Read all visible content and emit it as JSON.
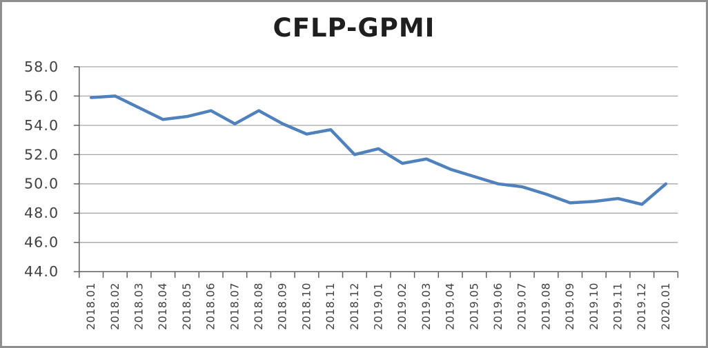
{
  "title": "CFLP-GPMI",
  "chart_data": {
    "type": "line",
    "title": "CFLP-GPMI",
    "categories": [
      "2018.01",
      "2018.02",
      "2018.03",
      "2018.04",
      "2018.05",
      "2018.06",
      "2018.07",
      "2018.08",
      "2018.09",
      "2018.10",
      "2018.11",
      "2018.12",
      "2019.01",
      "2019.02",
      "2019.03",
      "2019.04",
      "2019.05",
      "2019.06",
      "2019.07",
      "2019.08",
      "2019.09",
      "2019.10",
      "2019.11",
      "2019.12",
      "2020.01"
    ],
    "series": [
      {
        "name": "CFLP-GPMI",
        "color": "#4F81BD",
        "values": [
          55.9,
          56.0,
          55.2,
          54.4,
          54.6,
          55.0,
          54.1,
          55.0,
          54.1,
          53.4,
          53.7,
          52.0,
          52.4,
          51.4,
          51.7,
          51.0,
          50.5,
          50.0,
          49.8,
          49.3,
          48.7,
          48.8,
          49.0,
          48.6,
          50.0
        ]
      }
    ],
    "ylim": [
      44.0,
      58.0
    ],
    "y_ticks": [
      44.0,
      46.0,
      48.0,
      50.0,
      52.0,
      54.0,
      56.0,
      58.0
    ],
    "y_tick_labels": [
      "44.0",
      "46.0",
      "48.0",
      "50.0",
      "52.0",
      "54.0",
      "56.0",
      "58.0"
    ],
    "grid": true,
    "legend_position": "none",
    "x_label_rotation": 90
  },
  "style": {
    "line_color": "#4F81BD",
    "gridline_color": "#A6A6A6",
    "axis_color": "#5E5E5E",
    "tick_label_color": "#404040",
    "title_color": "#1F1F1F",
    "border_color": "#8E8E8E",
    "background_color": "#FFFFFF"
  }
}
